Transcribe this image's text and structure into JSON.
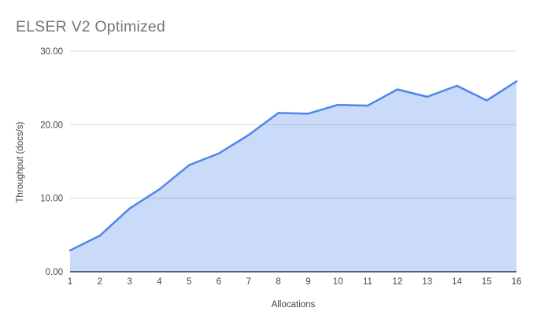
{
  "chart_data": {
    "type": "area",
    "title": "ELSER V2 Optimized",
    "xlabel": "Allocations",
    "ylabel": "Throughput (docs/s)",
    "x": [
      1,
      2,
      3,
      4,
      5,
      6,
      7,
      8,
      9,
      10,
      11,
      12,
      13,
      14,
      15,
      16
    ],
    "values": [
      2.9,
      4.9,
      8.6,
      11.2,
      14.5,
      16.1,
      18.6,
      21.6,
      21.5,
      22.7,
      22.6,
      24.8,
      23.8,
      25.3,
      23.3,
      25.9
    ],
    "series_name": "Throughput",
    "ylim": [
      0,
      30
    ],
    "yticks": [
      {
        "value": 0,
        "label": "0.00"
      },
      {
        "value": 10,
        "label": "10.00"
      },
      {
        "value": 20,
        "label": "20.00"
      },
      {
        "value": 30,
        "label": "30.00"
      }
    ],
    "grid": true,
    "legend": "none",
    "colors": {
      "line": "#4e86ec",
      "fill_opacity": "0.3",
      "grid": "#d9d9d9",
      "axis_line": "#333333",
      "title": "#757575",
      "tick_label": "#444444",
      "axis_title": "#444444",
      "background": "#ffffff"
    }
  }
}
